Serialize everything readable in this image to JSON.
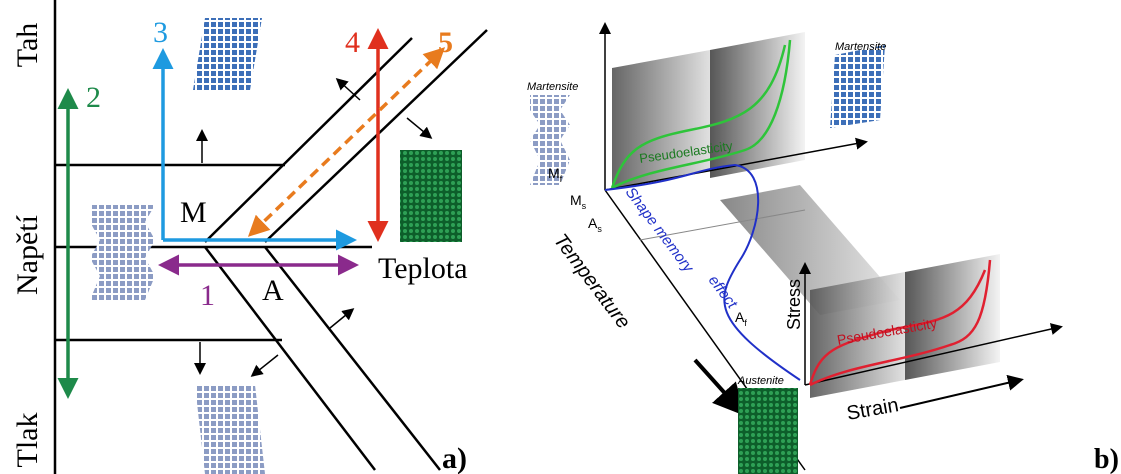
{
  "panel_a": {
    "axis_labels": {
      "tension": "Tah",
      "stress": "Napětí",
      "compression": "Tlak",
      "temperature": "Teplota"
    },
    "path_labels": [
      "1",
      "2",
      "3",
      "4",
      "5"
    ],
    "phase_labels": {
      "martensite": "M",
      "austenite": "A"
    },
    "caption": "a)"
  },
  "panel_b": {
    "martensite_top": "Martensite",
    "martensite_left": "Martensite",
    "pseudoelasticity_upper": "Pseudoelasticity",
    "pseudoelasticity_lower": "Pseudoelasticity",
    "temperatures": [
      {
        "main": "M",
        "sub": "f"
      },
      {
        "main": "M",
        "sub": "s"
      },
      {
        "main": "A",
        "sub": "s"
      },
      {
        "main": "A",
        "sub": "f"
      }
    ],
    "shape_memory": [
      "Shape memory",
      "effect"
    ],
    "axis_temperature": "Temperature",
    "axis_stress": "Stress",
    "axis_strain": "Strain",
    "austenite": "Austenite",
    "caption": "b)"
  }
}
